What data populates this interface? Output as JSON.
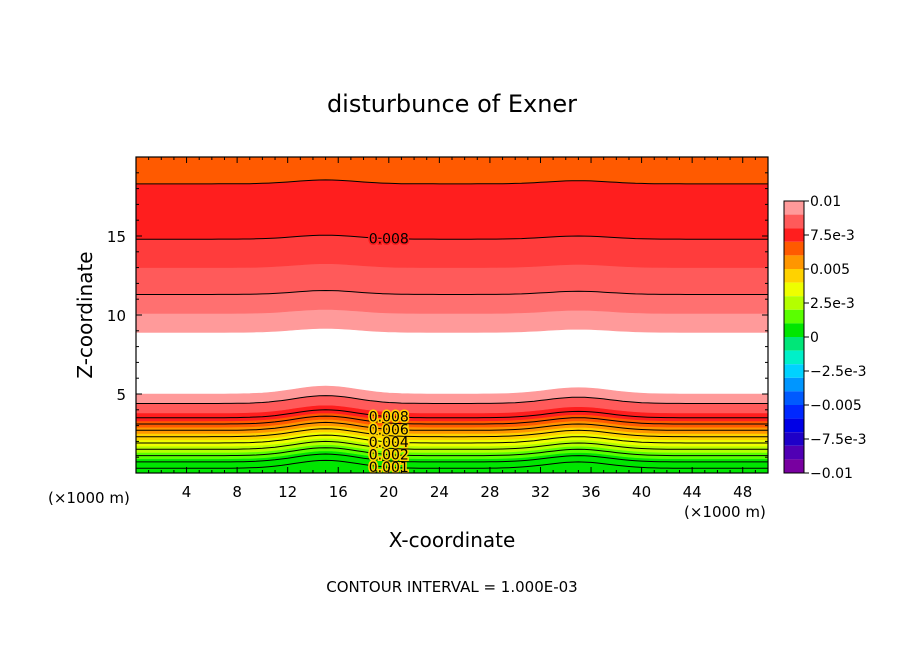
{
  "chart_data": {
    "type": "contour",
    "title": "disturbunce of Exner",
    "xlabel": "X-coordinate",
    "ylabel": "Z-coordinate",
    "x_unit_label_left": "(×1000 m)",
    "x_unit_label_right": "(×1000 m)",
    "x_range": [
      0,
      50
    ],
    "y_range": [
      0,
      20
    ],
    "x_ticks": [
      4,
      8,
      12,
      16,
      20,
      24,
      28,
      32,
      36,
      40,
      44,
      48
    ],
    "y_ticks": [
      5,
      10,
      15
    ],
    "footer": "CONTOUR INTERVAL = 1.000E-03",
    "colorbar": {
      "min": -0.01,
      "max": 0.01,
      "tick_labels": [
        "0.01",
        "7.5e-3",
        "0.005",
        "2.5e-3",
        "0",
        "−2.5e-3",
        "−0.005",
        "−7.5e-3",
        "−0.01"
      ],
      "levels": [
        {
          "lo": 0.009,
          "hi": 0.01,
          "color": "#ff9a9a"
        },
        {
          "lo": 0.008,
          "hi": 0.009,
          "color": "#ff5a5a"
        },
        {
          "lo": 0.007,
          "hi": 0.008,
          "color": "#ff1e1e"
        },
        {
          "lo": 0.006,
          "hi": 0.007,
          "color": "#ff5a00"
        },
        {
          "lo": 0.005,
          "hi": 0.006,
          "color": "#ff9600"
        },
        {
          "lo": 0.004,
          "hi": 0.005,
          "color": "#ffd200"
        },
        {
          "lo": 0.003,
          "hi": 0.004,
          "color": "#eeff00"
        },
        {
          "lo": 0.002,
          "hi": 0.003,
          "color": "#b4ff00"
        },
        {
          "lo": 0.001,
          "hi": 0.002,
          "color": "#5aff00"
        },
        {
          "lo": 0.0,
          "hi": 0.001,
          "color": "#00e600"
        },
        {
          "lo": -0.001,
          "hi": 0.0,
          "color": "#00e678"
        },
        {
          "lo": -0.002,
          "hi": -0.001,
          "color": "#00f0c8"
        },
        {
          "lo": -0.003,
          "hi": -0.002,
          "color": "#00d2ff"
        },
        {
          "lo": -0.004,
          "hi": -0.003,
          "color": "#0096ff"
        },
        {
          "lo": -0.005,
          "hi": -0.004,
          "color": "#005aff"
        },
        {
          "lo": -0.006,
          "hi": -0.005,
          "color": "#0028ff"
        },
        {
          "lo": -0.007,
          "hi": -0.006,
          "color": "#0000e6"
        },
        {
          "lo": -0.008,
          "hi": -0.007,
          "color": "#1e00c8"
        },
        {
          "lo": -0.009,
          "hi": -0.008,
          "color": "#5000b4"
        },
        {
          "lo": -0.01,
          "hi": -0.009,
          "color": "#7800a0"
        }
      ]
    },
    "field_bands": [
      {
        "z_lo": 0.0,
        "z_hi": 0.4,
        "color": "#00e600"
      },
      {
        "z_lo": 0.4,
        "z_hi": 0.9,
        "color": "#00e600"
      },
      {
        "z_lo": 0.9,
        "z_hi": 1.3,
        "color": "#5aff00"
      },
      {
        "z_lo": 1.3,
        "z_hi": 1.7,
        "color": "#b4ff00"
      },
      {
        "z_lo": 1.7,
        "z_hi": 2.1,
        "color": "#eeff00"
      },
      {
        "z_lo": 2.1,
        "z_hi": 2.5,
        "color": "#ffd200"
      },
      {
        "z_lo": 2.5,
        "z_hi": 2.9,
        "color": "#ff9600"
      },
      {
        "z_lo": 2.9,
        "z_hi": 3.3,
        "color": "#ff5a00"
      },
      {
        "z_lo": 3.3,
        "z_hi": 3.8,
        "color": "#ff1e1e"
      },
      {
        "z_lo": 3.8,
        "z_hi": 4.4,
        "color": "#ff5a5a"
      },
      {
        "z_lo": 4.4,
        "z_hi": 5.0,
        "color": "#ff9a9a"
      },
      {
        "z_lo": 8.9,
        "z_hi": 10.1,
        "color": "#ff9a9a"
      },
      {
        "z_lo": 10.1,
        "z_hi": 11.3,
        "color": "#ff7070"
      },
      {
        "z_lo": 11.3,
        "z_hi": 13.0,
        "color": "#ff5a5a"
      },
      {
        "z_lo": 13.0,
        "z_hi": 14.8,
        "color": "#ff3c3c"
      },
      {
        "z_lo": 14.8,
        "z_hi": 18.3,
        "color": "#ff1e1e"
      },
      {
        "z_lo": 18.3,
        "z_hi": 20.0,
        "color": "#ff5a00"
      }
    ],
    "contour_lines": [
      {
        "z": 0.3,
        "label": "0.001"
      },
      {
        "z": 0.7,
        "label": ""
      },
      {
        "z": 1.1,
        "label": "0.002"
      },
      {
        "z": 1.5,
        "label": ""
      },
      {
        "z": 1.9,
        "label": "0.004"
      },
      {
        "z": 2.3,
        "label": ""
      },
      {
        "z": 2.7,
        "label": "0.006"
      },
      {
        "z": 3.1,
        "label": ""
      },
      {
        "z": 3.5,
        "label": "0.008"
      },
      {
        "z": 4.4,
        "label": ""
      },
      {
        "z": 11.3,
        "label": ""
      },
      {
        "z": 14.8,
        "label": "0.008"
      },
      {
        "z": 18.3,
        "label": ""
      }
    ]
  }
}
